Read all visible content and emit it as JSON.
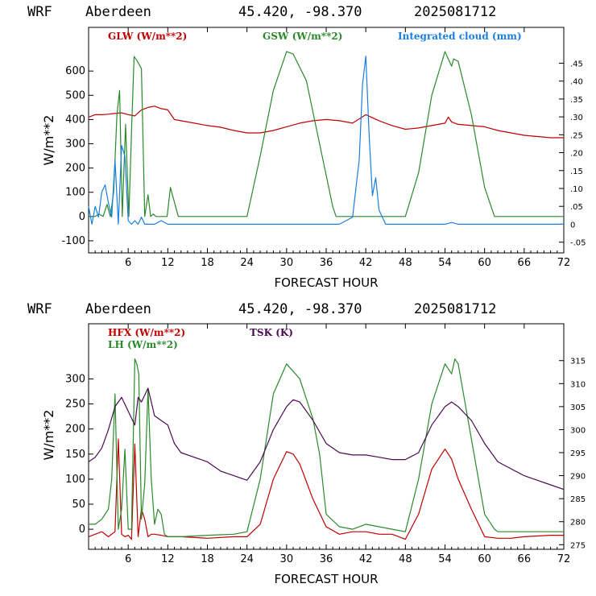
{
  "header": {
    "model": "WRF",
    "site": "Aberdeen",
    "coords": "45.420, -98.370",
    "run": "2025081712"
  },
  "colors": {
    "red": "#c00000",
    "green": "#2a8a2a",
    "blue": "#1a7fe0",
    "purple": "#4b0a52",
    "black": "#000000"
  },
  "chart_data": [
    {
      "type": "line",
      "title": "WRF Aberdeen 45.420, -98.370 2025081712",
      "xlabel": "FORECAST HOUR",
      "ylabel": "W/m**2",
      "xlim": [
        0,
        72
      ],
      "ylim": [
        -150,
        780
      ],
      "y2lim": [
        -0.08,
        0.55
      ],
      "x_ticks": [
        "6",
        "12",
        "18",
        "24",
        "30",
        "36",
        "42",
        "48",
        "54",
        "60",
        "66",
        "72"
      ],
      "y_ticks": [
        "-100",
        "0",
        "100",
        "200",
        "300",
        "400",
        "500",
        "600"
      ],
      "y2_ticks": [
        "-.05",
        "0",
        ".05",
        ".10",
        ".15",
        ".20",
        ".25",
        ".30",
        ".35",
        ".40",
        ".45"
      ],
      "series": [
        {
          "name": "GLW (W/m**2)",
          "color": "#c00000",
          "axis": "left",
          "x": [
            0,
            1,
            2,
            3,
            4,
            5,
            6,
            7,
            8,
            9,
            10,
            11,
            12,
            13,
            14,
            16,
            18,
            20,
            22,
            24,
            26,
            28,
            30,
            32,
            34,
            36,
            38,
            40,
            42,
            44,
            46,
            48,
            50,
            52,
            54,
            54.5,
            55,
            56,
            58,
            60,
            62,
            64,
            66,
            68,
            70,
            72
          ],
          "y": [
            410,
            420,
            420,
            422,
            425,
            428,
            420,
            415,
            440,
            450,
            455,
            445,
            440,
            400,
            395,
            385,
            375,
            368,
            355,
            345,
            345,
            355,
            370,
            385,
            395,
            400,
            395,
            385,
            420,
            395,
            375,
            360,
            365,
            375,
            385,
            410,
            390,
            380,
            375,
            370,
            355,
            345,
            335,
            330,
            325,
            325
          ]
        },
        {
          "name": "GSW (W/m**2)",
          "color": "#2a8a2a",
          "axis": "left",
          "x": [
            0,
            1,
            1.6,
            2.2,
            2.8,
            3.3,
            3.8,
            4.3,
            4.7,
            5.1,
            5.6,
            6.1,
            6.5,
            6.9,
            7.4,
            8,
            8.5,
            9,
            9.4,
            9.8,
            10.2,
            10.7,
            11.3,
            11.9,
            12.4,
            13,
            13.6,
            14,
            16,
            18,
            20,
            22,
            24,
            26,
            28,
            30,
            31,
            33,
            35,
            37,
            37.5,
            40,
            46,
            48,
            50,
            52,
            54,
            55,
            55.3,
            56,
            58,
            60,
            61.5,
            62,
            66,
            70,
            72
          ],
          "y": [
            0,
            0,
            10,
            0,
            50,
            0,
            100,
            420,
            520,
            0,
            380,
            0,
            350,
            660,
            640,
            610,
            0,
            90,
            0,
            10,
            0,
            0,
            0,
            0,
            120,
            60,
            0,
            0,
            0,
            0,
            0,
            0,
            0,
            250,
            520,
            680,
            670,
            560,
            300,
            40,
            0,
            0,
            0,
            0,
            180,
            500,
            680,
            620,
            650,
            640,
            420,
            120,
            0,
            0,
            0,
            0,
            0
          ]
        },
        {
          "name": "Integrated cloud (mm)",
          "color": "#1a7fe0",
          "axis": "right",
          "x": [
            0,
            0.5,
            1,
            1.5,
            2,
            2.5,
            3,
            3.5,
            4,
            4.5,
            5,
            5.5,
            6,
            6.5,
            7,
            7.5,
            8,
            8.5,
            9,
            10,
            11,
            12,
            13,
            14,
            20,
            30,
            38,
            40,
            41,
            41.5,
            42,
            42.5,
            43,
            43.5,
            44,
            45,
            46,
            48,
            50,
            54,
            55,
            56,
            60,
            72
          ],
          "y": [
            0.05,
            0.0,
            0.05,
            0.02,
            0.09,
            0.11,
            0.06,
            0.02,
            0.18,
            0.0,
            0.22,
            0.19,
            0.01,
            0.0,
            0.01,
            0.0,
            0.02,
            0.0,
            0.0,
            0.0,
            0.01,
            0.0,
            0.0,
            0.0,
            0.0,
            0.0,
            0.0,
            0.02,
            0.18,
            0.39,
            0.47,
            0.25,
            0.08,
            0.13,
            0.04,
            0.0,
            0.0,
            0.0,
            0.0,
            0.0,
            0.005,
            0.0,
            0.0,
            0.0
          ]
        }
      ]
    },
    {
      "type": "line",
      "title": "WRF Aberdeen 45.420, -98.370 2025081712",
      "xlabel": "FORECAST HOUR",
      "ylabel": "W/m**2",
      "xlim": [
        0,
        72
      ],
      "ylim": [
        -40,
        410
      ],
      "y2lim": [
        274,
        323
      ],
      "x_ticks": [
        "6",
        "12",
        "18",
        "24",
        "30",
        "36",
        "42",
        "48",
        "54",
        "60",
        "66",
        "72"
      ],
      "y_ticks": [
        "0",
        "50",
        "100",
        "150",
        "200",
        "250",
        "300"
      ],
      "y2_ticks": [
        "275",
        "280",
        "285",
        "290",
        "295",
        "300",
        "305",
        "310",
        "315"
      ],
      "series": [
        {
          "name": "HFX (W/m**2)",
          "color": "#c00000",
          "axis": "left",
          "x": [
            0,
            1,
            2,
            3,
            4,
            4.5,
            5,
            5.5,
            6,
            6.5,
            7,
            7.5,
            8,
            8.5,
            9,
            9.5,
            10,
            11,
            12,
            14,
            18,
            22,
            24,
            26,
            28,
            30,
            31,
            32,
            34,
            36,
            38,
            40,
            42,
            44,
            46,
            48,
            50,
            52,
            54,
            55,
            56,
            58,
            60,
            62,
            64,
            66,
            70,
            72
          ],
          "y": [
            -15,
            -10,
            -5,
            -15,
            -5,
            180,
            -10,
            -15,
            -12,
            -20,
            170,
            -15,
            40,
            20,
            -15,
            -10,
            -10,
            -12,
            -15,
            -15,
            -18,
            -15,
            -15,
            10,
            100,
            155,
            150,
            130,
            60,
            5,
            -10,
            -5,
            -5,
            -10,
            -10,
            -20,
            30,
            120,
            160,
            140,
            100,
            40,
            -15,
            -18,
            -18,
            -15,
            -12,
            -12
          ]
        },
        {
          "name": "LH  (W/m**2)",
          "color": "#2a8a2a",
          "axis": "left",
          "x": [
            0,
            1,
            2,
            3,
            3.5,
            4,
            4.5,
            5,
            5.5,
            6,
            6.5,
            7,
            7.3,
            7.6,
            8,
            8.5,
            9,
            9.5,
            10,
            10.5,
            11,
            11.5,
            12,
            14,
            18,
            22,
            24,
            26,
            28,
            30,
            32,
            34,
            35,
            36,
            38,
            40,
            42,
            44,
            46,
            48,
            50,
            52,
            54,
            55,
            55.5,
            56,
            58,
            60,
            61.5,
            62,
            66,
            70,
            72
          ],
          "y": [
            10,
            10,
            20,
            40,
            100,
            270,
            0,
            40,
            160,
            0,
            0,
            340,
            330,
            310,
            20,
            90,
            280,
            100,
            10,
            40,
            30,
            -10,
            -15,
            -15,
            -12,
            -10,
            -5,
            100,
            270,
            330,
            300,
            220,
            150,
            30,
            5,
            0,
            10,
            5,
            0,
            -5,
            100,
            250,
            330,
            310,
            340,
            330,
            180,
            30,
            0,
            -5,
            -5,
            -5,
            -5
          ]
        },
        {
          "name": "TSK (K)",
          "color": "#4b0a52",
          "axis": "right",
          "x": [
            0,
            1,
            2,
            3,
            4,
            5,
            6,
            7,
            7.5,
            8,
            9,
            10,
            11,
            12,
            13,
            14,
            16,
            18,
            20,
            22,
            24,
            26,
            28,
            30,
            31,
            32,
            34,
            36,
            38,
            40,
            42,
            44,
            46,
            48,
            50,
            52,
            54,
            55,
            56,
            58,
            60,
            62,
            64,
            66,
            68,
            70,
            72
          ],
          "y": [
            293,
            294,
            296,
            300,
            305,
            307,
            304,
            301,
            307,
            306,
            309,
            303,
            302,
            301,
            297,
            295,
            294,
            293,
            291,
            290,
            289,
            293,
            300,
            305,
            306.5,
            306,
            302,
            297,
            295,
            294.5,
            294.5,
            294,
            293.5,
            293.5,
            295,
            301,
            305,
            306,
            305,
            302,
            297,
            293,
            291.5,
            290,
            289,
            288,
            287
          ]
        }
      ]
    }
  ]
}
